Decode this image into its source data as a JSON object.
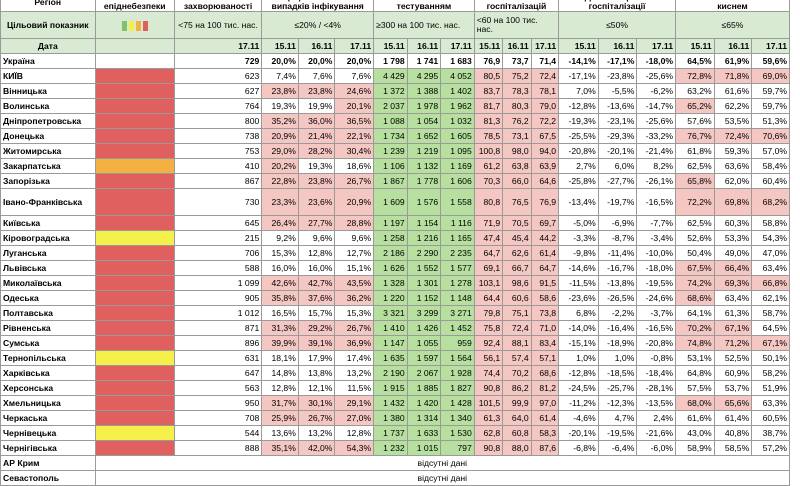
{
  "headers": {
    "region": "Регіон",
    "danger_level": "Рівень епіднебезпеки",
    "incidence": "Рівень захворюваності",
    "infection_coef": "Коефіцієнт виявлення випадків інфікування",
    "testing": "Охоплення тестуванням",
    "hospitalization": "Рівень госпіталізацій",
    "hosp_dynamics": "Динаміка рівня госпіталізації",
    "oxygen_beds": "Завантаженість ліжок з киснем"
  },
  "target_row": {
    "label": "Цільовий показник",
    "incidence": "<75 на 100 тис. нас.",
    "infection_coef": "≤20% / <4%",
    "testing": "≥300 на 100 тис. нас.",
    "hospitalization": "<60 на 100 тис. нас.",
    "hosp_dynamics": "≤50%",
    "oxygen_beds": "≤65%",
    "legend_colors": [
      "#7fc36a",
      "#f5ef4a",
      "#f5b042",
      "#e06060"
    ]
  },
  "date_row": {
    "label": "Дата",
    "incidence": "17.11",
    "triple": [
      "15.11",
      "16.11",
      "17.11"
    ]
  },
  "ukraine": {
    "name": "Україна",
    "incidence": "729",
    "coef": [
      "20,0%",
      "20,0%",
      "20,0%"
    ],
    "test": [
      "1 798",
      "1 741",
      "1 683"
    ],
    "hosp": [
      "76,9",
      "73,7",
      "71,4"
    ],
    "dyn": [
      "-14,1%",
      "-17,1%",
      "-18,0%"
    ],
    "oxy": [
      "64,5%",
      "61,9%",
      "59,6%"
    ]
  },
  "regions": [
    {
      "name": "КИЇВ",
      "level": "red",
      "incidence": "623",
      "coef": [
        "7,4%",
        "7,6%",
        "7,6%"
      ],
      "coef_hl": [
        0,
        0,
        0
      ],
      "test": [
        "4 429",
        "4 295",
        "4 052"
      ],
      "hosp": [
        "80,5",
        "75,2",
        "72,4"
      ],
      "dyn": [
        "-17,1%",
        "-23,8%",
        "-25,6%"
      ],
      "oxy": [
        "72,8%",
        "71,8%",
        "69,0%"
      ],
      "oxy_hl": [
        1,
        1,
        1
      ]
    },
    {
      "name": "Вінницька",
      "level": "red",
      "incidence": "627",
      "coef": [
        "23,8%",
        "23,8%",
        "24,6%"
      ],
      "coef_hl": [
        1,
        1,
        1
      ],
      "test": [
        "1 372",
        "1 388",
        "1 402"
      ],
      "hosp": [
        "83,7",
        "78,3",
        "78,1"
      ],
      "dyn": [
        "7,0%",
        "-5,5%",
        "-6,2%"
      ],
      "oxy": [
        "63,2%",
        "61,6%",
        "59,7%"
      ],
      "oxy_hl": [
        0,
        0,
        0
      ]
    },
    {
      "name": "Волинська",
      "level": "red",
      "incidence": "764",
      "coef": [
        "19,3%",
        "19,9%",
        "20,1%"
      ],
      "coef_hl": [
        0,
        0,
        1
      ],
      "test": [
        "2 037",
        "1 978",
        "1 962"
      ],
      "hosp": [
        "81,7",
        "80,3",
        "79,0"
      ],
      "dyn": [
        "-12,8%",
        "-13,6%",
        "-14,7%"
      ],
      "oxy": [
        "65,2%",
        "62,2%",
        "59,7%"
      ],
      "oxy_hl": [
        1,
        0,
        0
      ]
    },
    {
      "name": "Дніпропетровська",
      "level": "red",
      "incidence": "800",
      "coef": [
        "35,2%",
        "36,0%",
        "36,5%"
      ],
      "coef_hl": [
        1,
        1,
        1
      ],
      "test": [
        "1 088",
        "1 054",
        "1 032"
      ],
      "hosp": [
        "81,3",
        "76,2",
        "72,2"
      ],
      "dyn": [
        "-19,3%",
        "-23,1%",
        "-25,6%"
      ],
      "oxy": [
        "57,6%",
        "53,5%",
        "51,3%"
      ],
      "oxy_hl": [
        0,
        0,
        0
      ]
    },
    {
      "name": "Донецька",
      "level": "red",
      "incidence": "738",
      "coef": [
        "20,9%",
        "21,4%",
        "22,1%"
      ],
      "coef_hl": [
        1,
        1,
        1
      ],
      "test": [
        "1 734",
        "1 652",
        "1 605"
      ],
      "hosp": [
        "78,5",
        "73,1",
        "67,5"
      ],
      "dyn": [
        "-25,5%",
        "-29,3%",
        "-33,2%"
      ],
      "oxy": [
        "76,7%",
        "72,4%",
        "70,6%"
      ],
      "oxy_hl": [
        1,
        1,
        1
      ]
    },
    {
      "name": "Житомирська",
      "level": "red",
      "incidence": "753",
      "coef": [
        "29,0%",
        "28,2%",
        "30,4%"
      ],
      "coef_hl": [
        1,
        1,
        1
      ],
      "test": [
        "1 239",
        "1 219",
        "1 095"
      ],
      "hosp": [
        "100,8",
        "98,0",
        "94,0"
      ],
      "dyn": [
        "-20,8%",
        "-20,1%",
        "-21,4%"
      ],
      "oxy": [
        "61,8%",
        "59,3%",
        "57,0%"
      ],
      "oxy_hl": [
        0,
        0,
        0
      ]
    },
    {
      "name": "Закарпатська",
      "level": "orange",
      "incidence": "410",
      "coef": [
        "20,2%",
        "19,3%",
        "18,6%"
      ],
      "coef_hl": [
        1,
        0,
        0
      ],
      "test": [
        "1 106",
        "1 132",
        "1 169"
      ],
      "hosp": [
        "61,2",
        "63,8",
        "63,9"
      ],
      "dyn": [
        "2,7%",
        "6,0%",
        "8,2%"
      ],
      "oxy": [
        "62,5%",
        "63,6%",
        "58,4%"
      ],
      "oxy_hl": [
        0,
        0,
        0
      ]
    },
    {
      "name": "Запорізька",
      "level": "red",
      "incidence": "867",
      "coef": [
        "22,8%",
        "23,8%",
        "26,7%"
      ],
      "coef_hl": [
        1,
        1,
        1
      ],
      "test": [
        "1 867",
        "1 778",
        "1 606"
      ],
      "hosp": [
        "70,3",
        "66,0",
        "64,6"
      ],
      "dyn": [
        "-25,8%",
        "-27,7%",
        "-26,1%"
      ],
      "oxy": [
        "65,8%",
        "62,0%",
        "60,4%"
      ],
      "oxy_hl": [
        1,
        0,
        0
      ]
    },
    {
      "name": "Івано-Франківська",
      "level": "red",
      "tall": true,
      "incidence": "730",
      "coef": [
        "23,3%",
        "23,6%",
        "20,9%"
      ],
      "coef_hl": [
        1,
        1,
        1
      ],
      "test": [
        "1 609",
        "1 576",
        "1 558"
      ],
      "hosp": [
        "80,8",
        "76,5",
        "76,9"
      ],
      "dyn": [
        "-13,4%",
        "-19,7%",
        "-16,5%"
      ],
      "oxy": [
        "72,2%",
        "69,8%",
        "68,2%"
      ],
      "oxy_hl": [
        1,
        1,
        1
      ]
    },
    {
      "name": "Київська",
      "level": "red",
      "incidence": "645",
      "coef": [
        "26,4%",
        "27,7%",
        "28,8%"
      ],
      "coef_hl": [
        1,
        1,
        1
      ],
      "test": [
        "1 197",
        "1 154",
        "1 116"
      ],
      "hosp": [
        "71,9",
        "70,5",
        "69,7"
      ],
      "dyn": [
        "-5,0%",
        "-6,9%",
        "-7,7%"
      ],
      "oxy": [
        "62,5%",
        "60,3%",
        "58,8%"
      ],
      "oxy_hl": [
        0,
        0,
        0
      ]
    },
    {
      "name": "Кіровоградська",
      "level": "yellow",
      "incidence": "215",
      "coef": [
        "9,2%",
        "9,6%",
        "9,6%"
      ],
      "coef_hl": [
        0,
        0,
        0
      ],
      "test": [
        "1 258",
        "1 216",
        "1 165"
      ],
      "hosp": [
        "47,4",
        "45,4",
        "44,2"
      ],
      "dyn": [
        "-3,3%",
        "-8,7%",
        "-3,4%"
      ],
      "oxy": [
        "52,6%",
        "53,3%",
        "54,3%"
      ],
      "oxy_hl": [
        0,
        0,
        0
      ]
    },
    {
      "name": "Луганська",
      "level": "red",
      "incidence": "706",
      "coef": [
        "15,3%",
        "12,8%",
        "12,7%"
      ],
      "coef_hl": [
        0,
        0,
        0
      ],
      "test": [
        "2 186",
        "2 290",
        "2 235"
      ],
      "hosp": [
        "64,7",
        "62,6",
        "61,4"
      ],
      "dyn": [
        "-9,8%",
        "-11,4%",
        "-10,0%"
      ],
      "oxy": [
        "50,4%",
        "49,0%",
        "47,0%"
      ],
      "oxy_hl": [
        0,
        0,
        0
      ]
    },
    {
      "name": "Львівська",
      "level": "red",
      "incidence": "588",
      "coef": [
        "16,0%",
        "16,0%",
        "15,1%"
      ],
      "coef_hl": [
        0,
        0,
        0
      ],
      "test": [
        "1 626",
        "1 552",
        "1 577"
      ],
      "hosp": [
        "69,1",
        "66,7",
        "64,7"
      ],
      "dyn": [
        "-14,6%",
        "-16,7%",
        "-18,0%"
      ],
      "oxy": [
        "67,5%",
        "66,4%",
        "63,4%"
      ],
      "oxy_hl": [
        1,
        1,
        0
      ]
    },
    {
      "name": "Миколаївська",
      "level": "red",
      "incidence": "1 099",
      "coef": [
        "42,6%",
        "42,7%",
        "43,5%"
      ],
      "coef_hl": [
        1,
        1,
        1
      ],
      "test": [
        "1 328",
        "1 301",
        "1 278"
      ],
      "hosp": [
        "103,1",
        "98,6",
        "91,5"
      ],
      "dyn": [
        "-11,5%",
        "-13,8%",
        "-19,5%"
      ],
      "oxy": [
        "74,2%",
        "69,3%",
        "66,8%"
      ],
      "oxy_hl": [
        1,
        1,
        1
      ]
    },
    {
      "name": "Одеська",
      "level": "red",
      "incidence": "905",
      "coef": [
        "35,8%",
        "37,6%",
        "36,2%"
      ],
      "coef_hl": [
        1,
        1,
        1
      ],
      "test": [
        "1 220",
        "1 152",
        "1 148"
      ],
      "hosp": [
        "64,4",
        "60,6",
        "58,6"
      ],
      "dyn": [
        "-23,6%",
        "-26,5%",
        "-24,6%"
      ],
      "oxy": [
        "68,6%",
        "63,4%",
        "62,1%"
      ],
      "oxy_hl": [
        1,
        0,
        0
      ]
    },
    {
      "name": "Полтавська",
      "level": "red",
      "incidence": "1 012",
      "coef": [
        "16,5%",
        "15,7%",
        "15,3%"
      ],
      "coef_hl": [
        0,
        0,
        0
      ],
      "test": [
        "3 321",
        "3 299",
        "3 271"
      ],
      "hosp": [
        "79,8",
        "75,1",
        "73,8"
      ],
      "dyn": [
        "6,8%",
        "-2,2%",
        "-3,7%"
      ],
      "oxy": [
        "64,1%",
        "61,3%",
        "58,7%"
      ],
      "oxy_hl": [
        0,
        0,
        0
      ]
    },
    {
      "name": "Рівненська",
      "level": "red",
      "incidence": "871",
      "coef": [
        "31,3%",
        "29,2%",
        "26,7%"
      ],
      "coef_hl": [
        1,
        1,
        1
      ],
      "test": [
        "1 410",
        "1 426",
        "1 452"
      ],
      "hosp": [
        "75,8",
        "72,4",
        "71,0"
      ],
      "dyn": [
        "-14,0%",
        "-16,4%",
        "-16,5%"
      ],
      "oxy": [
        "70,2%",
        "67,1%",
        "64,5%"
      ],
      "oxy_hl": [
        1,
        1,
        0
      ]
    },
    {
      "name": "Сумська",
      "level": "red",
      "incidence": "896",
      "coef": [
        "39,9%",
        "39,1%",
        "36,9%"
      ],
      "coef_hl": [
        1,
        1,
        1
      ],
      "test": [
        "1 147",
        "1 055",
        "959"
      ],
      "hosp": [
        "92,4",
        "88,1",
        "83,4"
      ],
      "dyn": [
        "-15,1%",
        "-18,9%",
        "-20,8%"
      ],
      "oxy": [
        "74,8%",
        "71,2%",
        "67,1%"
      ],
      "oxy_hl": [
        1,
        1,
        1
      ]
    },
    {
      "name": "Тернопільська",
      "level": "yellow",
      "incidence": "631",
      "coef": [
        "18,1%",
        "17,9%",
        "17,4%"
      ],
      "coef_hl": [
        0,
        0,
        0
      ],
      "test": [
        "1 635",
        "1 597",
        "1 564"
      ],
      "hosp": [
        "56,1",
        "57,4",
        "57,1"
      ],
      "dyn": [
        "1,0%",
        "1,0%",
        "-0,8%"
      ],
      "oxy": [
        "53,1%",
        "52,5%",
        "50,1%"
      ],
      "oxy_hl": [
        0,
        0,
        0
      ]
    },
    {
      "name": "Харківська",
      "level": "red",
      "incidence": "647",
      "coef": [
        "14,8%",
        "13,8%",
        "13,2%"
      ],
      "coef_hl": [
        0,
        0,
        0
      ],
      "test": [
        "2 190",
        "2 067",
        "1 928"
      ],
      "hosp": [
        "74,4",
        "70,2",
        "68,6"
      ],
      "dyn": [
        "-12,8%",
        "-18,5%",
        "-18,4%"
      ],
      "oxy": [
        "64,8%",
        "60,9%",
        "58,2%"
      ],
      "oxy_hl": [
        0,
        0,
        0
      ]
    },
    {
      "name": "Херсонська",
      "level": "red",
      "incidence": "563",
      "coef": [
        "12,8%",
        "12,1%",
        "11,5%"
      ],
      "coef_hl": [
        0,
        0,
        0
      ],
      "test": [
        "1 915",
        "1 885",
        "1 827"
      ],
      "hosp": [
        "90,8",
        "86,2",
        "81,2"
      ],
      "dyn": [
        "-24,5%",
        "-25,7%",
        "-28,1%"
      ],
      "oxy": [
        "57,5%",
        "53,7%",
        "51,9%"
      ],
      "oxy_hl": [
        0,
        0,
        0
      ]
    },
    {
      "name": "Хмельницька",
      "level": "red",
      "incidence": "950",
      "coef": [
        "31,7%",
        "30,1%",
        "29,1%"
      ],
      "coef_hl": [
        1,
        1,
        1
      ],
      "test": [
        "1 432",
        "1 420",
        "1 428"
      ],
      "hosp": [
        "101,5",
        "99,9",
        "97,0"
      ],
      "dyn": [
        "-11,2%",
        "-12,3%",
        "-13,5%"
      ],
      "oxy": [
        "68,0%",
        "65,6%",
        "63,3%"
      ],
      "oxy_hl": [
        1,
        1,
        0
      ]
    },
    {
      "name": "Черкаська",
      "level": "red",
      "incidence": "708",
      "coef": [
        "25,9%",
        "26,7%",
        "27,0%"
      ],
      "coef_hl": [
        1,
        1,
        1
      ],
      "test": [
        "1 380",
        "1 314",
        "1 340"
      ],
      "hosp": [
        "61,3",
        "64,0",
        "61,4"
      ],
      "dyn": [
        "-4,6%",
        "4,7%",
        "2,4%"
      ],
      "oxy": [
        "61,6%",
        "61,4%",
        "60,5%"
      ],
      "oxy_hl": [
        0,
        0,
        0
      ]
    },
    {
      "name": "Чернівецька",
      "level": "yellow",
      "incidence": "544",
      "coef": [
        "13,6%",
        "13,2%",
        "12,8%"
      ],
      "coef_hl": [
        0,
        0,
        0
      ],
      "test": [
        "1 737",
        "1 633",
        "1 530"
      ],
      "hosp": [
        "62,8",
        "60,8",
        "58,3"
      ],
      "dyn": [
        "-20,1%",
        "-19,5%",
        "-21,6%"
      ],
      "oxy": [
        "43,0%",
        "40,8%",
        "38,7%"
      ],
      "oxy_hl": [
        0,
        0,
        0
      ]
    },
    {
      "name": "Чернігівська",
      "level": "red",
      "incidence": "888",
      "coef": [
        "35,1%",
        "42,0%",
        "54,3%"
      ],
      "coef_hl": [
        1,
        1,
        1
      ],
      "test": [
        "1 232",
        "1 015",
        "797"
      ],
      "hosp": [
        "90,8",
        "88,0",
        "87,6"
      ],
      "dyn": [
        "-6,8%",
        "-6,4%",
        "-6,0%"
      ],
      "oxy": [
        "58,9%",
        "58,5%",
        "57,2%"
      ],
      "oxy_hl": [
        0,
        0,
        0
      ]
    }
  ],
  "no_data_rows": [
    {
      "name": "АР Крим",
      "text": "відсутні дані"
    },
    {
      "name": "Севастополь",
      "text": "відсутні дані"
    }
  ],
  "colors": {
    "red": "#e06060",
    "orange": "#f5b042",
    "yellow": "#f5ef4a",
    "green": "#7fc36a",
    "pink_highlight": "#f4c7c3",
    "green_highlight": "#b6dfa0"
  }
}
